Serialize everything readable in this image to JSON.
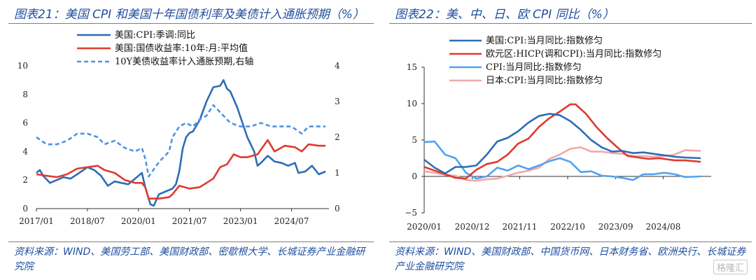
{
  "left": {
    "title": "图表21：美国 CPI 和美国十年国债利率及美债计入通胀预期（%）",
    "source": "资料来源：WIND、美国劳工部、美国财政部、密歇根大学、长城证券产业金融研究院"
  },
  "right": {
    "title": "图表22：美、中、日、欧 CPI 同比（%）",
    "source": "资料来源：WIND、美国财政部、中国货币网、日本财务省、欧洲央行、长城证券产业金融研究院"
  },
  "watermark": "格隆汇",
  "chart_data": [
    {
      "type": "line",
      "x_ticks": [
        "2017/01",
        "2018/07",
        "2020/01",
        "2021/07",
        "2023/01",
        "2024/07"
      ],
      "y_ticks_left": [
        "0",
        "2",
        "4",
        "6",
        "8",
        "10"
      ],
      "y_ticks_right": [
        "0",
        "1",
        "2",
        "3",
        "4"
      ],
      "ylim_left": [
        0,
        10
      ],
      "ylim_right": [
        0,
        4
      ],
      "xlim": [
        2017.0,
        2025.6
      ],
      "legend_position": "top-center",
      "series": [
        {
          "name": "美国:CPI:季调:同比",
          "color": "#2e6db4",
          "style": "solid",
          "axis": "left",
          "x": [
            2017.0,
            2017.1,
            2017.2,
            2017.4,
            2017.6,
            2017.8,
            2018.0,
            2018.2,
            2018.5,
            2018.7,
            2018.9,
            2019.1,
            2019.3,
            2019.5,
            2019.7,
            2019.9,
            2020.1,
            2020.2,
            2020.35,
            2020.45,
            2020.6,
            2020.8,
            2021.0,
            2021.1,
            2021.2,
            2021.3,
            2021.4,
            2021.5,
            2021.6,
            2021.8,
            2022.0,
            2022.2,
            2022.4,
            2022.5,
            2022.6,
            2022.7,
            2022.9,
            2023.0,
            2023.2,
            2023.4,
            2023.5,
            2023.6,
            2023.8,
            2024.0,
            2024.2,
            2024.4,
            2024.6,
            2024.7,
            2024.9,
            2025.1,
            2025.3,
            2025.5
          ],
          "y": [
            2.5,
            2.7,
            2.3,
            1.8,
            2.0,
            2.2,
            2.1,
            2.4,
            2.9,
            2.7,
            2.3,
            1.6,
            1.9,
            1.8,
            1.7,
            2.1,
            2.5,
            1.5,
            0.3,
            0.2,
            1.0,
            1.2,
            1.4,
            1.7,
            2.6,
            4.2,
            5.0,
            5.3,
            5.4,
            6.2,
            7.5,
            8.5,
            8.6,
            9.0,
            8.4,
            8.2,
            7.1,
            6.4,
            5.0,
            4.0,
            3.0,
            3.2,
            3.7,
            3.3,
            3.2,
            3.0,
            3.2,
            2.5,
            2.6,
            3.0,
            2.4,
            2.6
          ]
        },
        {
          "name": "美国:国债收益率:10年:月:平均值",
          "color": "#e03a2f",
          "style": "solid",
          "axis": "left",
          "x": [
            2017.0,
            2017.3,
            2017.6,
            2017.9,
            2018.2,
            2018.5,
            2018.8,
            2019.0,
            2019.3,
            2019.6,
            2019.9,
            2020.1,
            2020.2,
            2020.3,
            2020.6,
            2020.9,
            2021.0,
            2021.2,
            2021.5,
            2021.8,
            2022.0,
            2022.2,
            2022.4,
            2022.6,
            2022.8,
            2023.0,
            2023.2,
            2023.5,
            2023.8,
            2024.0,
            2024.3,
            2024.6,
            2024.8,
            2025.0,
            2025.3,
            2025.5
          ],
          "y": [
            2.4,
            2.3,
            2.2,
            2.4,
            2.8,
            2.9,
            3.0,
            2.7,
            2.5,
            2.0,
            1.8,
            1.8,
            1.5,
            0.7,
            0.7,
            0.8,
            1.0,
            1.6,
            1.4,
            1.5,
            1.8,
            2.1,
            2.9,
            3.1,
            3.8,
            3.6,
            3.6,
            3.8,
            4.8,
            4.0,
            4.4,
            4.3,
            4.0,
            4.5,
            4.4,
            4.4
          ]
        },
        {
          "name": "10Y美债收益率计入通胀预期,右轴",
          "color": "#4f93e6",
          "style": "dashed",
          "axis": "right",
          "x": [
            2017.0,
            2017.3,
            2017.6,
            2017.9,
            2018.2,
            2018.5,
            2018.8,
            2019.0,
            2019.3,
            2019.6,
            2019.9,
            2020.1,
            2020.2,
            2020.3,
            2020.6,
            2020.9,
            2021.0,
            2021.2,
            2021.4,
            2021.6,
            2021.8,
            2022.0,
            2022.2,
            2022.3,
            2022.5,
            2022.7,
            2023.0,
            2023.3,
            2023.6,
            2023.9,
            2024.2,
            2024.5,
            2024.8,
            2025.0,
            2025.3,
            2025.5
          ],
          "y": [
            2.0,
            1.8,
            1.8,
            1.9,
            2.1,
            2.1,
            2.0,
            1.8,
            1.9,
            1.7,
            1.6,
            1.7,
            1.4,
            0.9,
            1.3,
            1.6,
            2.0,
            2.3,
            2.4,
            2.3,
            2.5,
            2.6,
            2.9,
            2.8,
            2.6,
            2.4,
            2.3,
            2.3,
            2.4,
            2.3,
            2.3,
            2.3,
            2.1,
            2.3,
            2.3,
            2.3
          ]
        }
      ]
    },
    {
      "type": "line",
      "x_ticks": [
        "2020/01",
        "2020/12",
        "2021/11",
        "2022/10",
        "2023/09",
        "2024/08"
      ],
      "y_ticks": [
        "15",
        "10",
        "5",
        "0",
        "−5"
      ],
      "ylim": [
        -5,
        15
      ],
      "xlim": [
        2020.0,
        2025.5
      ],
      "legend_position": "top-center",
      "series": [
        {
          "name": "美国:CPI:当月同比:指数修匀",
          "color": "#2e6db4",
          "style": "solid",
          "x": [
            2020.0,
            2020.2,
            2020.4,
            2020.6,
            2020.8,
            2021.0,
            2021.2,
            2021.4,
            2021.6,
            2021.8,
            2022.0,
            2022.2,
            2022.4,
            2022.6,
            2022.8,
            2023.0,
            2023.2,
            2023.4,
            2023.6,
            2023.8,
            2024.0,
            2024.2,
            2024.4,
            2024.6,
            2024.8,
            2025.0,
            2025.3
          ],
          "y": [
            2.3,
            1.2,
            0.4,
            1.3,
            1.3,
            1.5,
            3.0,
            4.8,
            5.3,
            6.2,
            7.4,
            8.3,
            8.6,
            8.4,
            7.6,
            6.4,
            5.0,
            4.0,
            3.4,
            3.5,
            3.2,
            3.3,
            3.1,
            2.9,
            2.7,
            2.6,
            2.5
          ]
        },
        {
          "name": "欧元区:HICP(调和CPI):当月同比:指数修匀",
          "color": "#e03a2f",
          "style": "solid",
          "x": [
            2020.0,
            2020.2,
            2020.4,
            2020.6,
            2020.8,
            2021.0,
            2021.2,
            2021.4,
            2021.6,
            2021.8,
            2022.0,
            2022.2,
            2022.4,
            2022.6,
            2022.8,
            2022.9,
            2023.1,
            2023.3,
            2023.5,
            2023.7,
            2023.9,
            2024.1,
            2024.3,
            2024.5,
            2024.8,
            2025.0,
            2025.3
          ],
          "y": [
            1.3,
            0.8,
            0.3,
            -0.2,
            -0.3,
            0.9,
            1.7,
            2.0,
            3.0,
            4.5,
            5.2,
            6.8,
            8.0,
            8.9,
            9.9,
            9.9,
            8.6,
            6.8,
            5.3,
            4.0,
            2.8,
            2.6,
            2.4,
            2.5,
            2.2,
            2.2,
            2.0
          ]
        },
        {
          "name": "CPI:当月同比:指数修匀",
          "color": "#4fa3f0",
          "style": "solid",
          "x": [
            2020.0,
            2020.2,
            2020.4,
            2020.6,
            2020.8,
            2021.0,
            2021.2,
            2021.4,
            2021.6,
            2021.8,
            2022.0,
            2022.2,
            2022.4,
            2022.6,
            2022.8,
            2023.0,
            2023.2,
            2023.4,
            2023.6,
            2023.8,
            2024.0,
            2024.2,
            2024.4,
            2024.6,
            2024.8,
            2025.0,
            2025.3
          ],
          "y": [
            4.7,
            4.8,
            3.0,
            2.5,
            0.5,
            -0.3,
            0.0,
            1.2,
            0.8,
            1.5,
            1.0,
            1.5,
            2.1,
            2.5,
            2.0,
            0.6,
            0.7,
            0.1,
            0.0,
            -0.2,
            -0.5,
            0.3,
            0.3,
            0.5,
            0.3,
            -0.1,
            0.0
          ]
        },
        {
          "name": "日本:CPI:当月同比:指数修匀",
          "color": "#f0a9a9",
          "style": "solid",
          "x": [
            2020.0,
            2020.2,
            2020.4,
            2020.6,
            2020.8,
            2021.0,
            2021.2,
            2021.4,
            2021.6,
            2021.8,
            2022.0,
            2022.2,
            2022.4,
            2022.6,
            2022.8,
            2023.0,
            2023.2,
            2023.4,
            2023.6,
            2023.8,
            2024.0,
            2024.2,
            2024.4,
            2024.6,
            2024.8,
            2025.0,
            2025.3
          ],
          "y": [
            0.7,
            0.5,
            0.2,
            0.1,
            -0.5,
            -0.6,
            -0.4,
            -0.3,
            0.1,
            0.5,
            0.8,
            1.2,
            2.4,
            3.0,
            3.8,
            4.0,
            3.4,
            3.4,
            3.2,
            3.1,
            2.8,
            2.8,
            2.7,
            2.8,
            3.0,
            3.6,
            3.5
          ]
        }
      ]
    }
  ]
}
